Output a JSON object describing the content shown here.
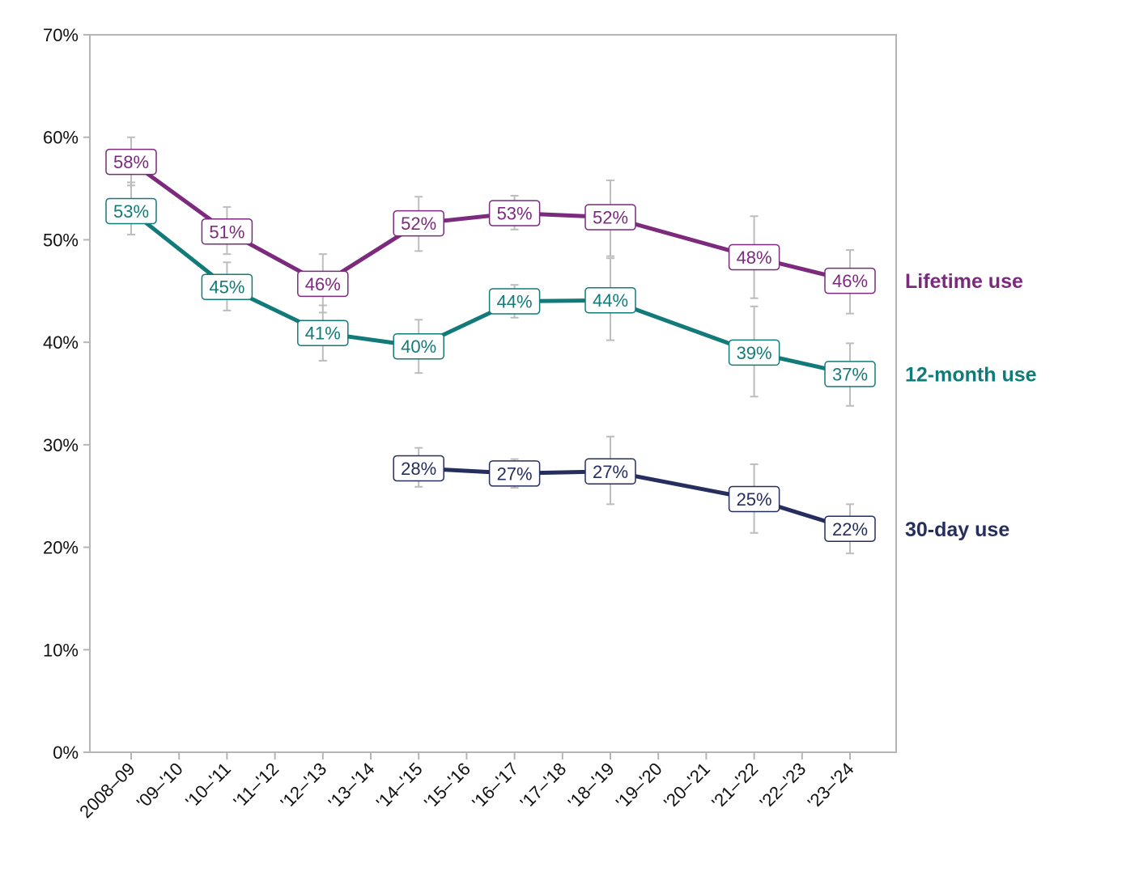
{
  "chart_data": {
    "type": "line",
    "title": "",
    "xlabel": "",
    "ylabel": "",
    "ylim": [
      0,
      70
    ],
    "y_ticks": [
      "0%",
      "10%",
      "20%",
      "30%",
      "40%",
      "50%",
      "60%",
      "70%"
    ],
    "categories": [
      "2008–09",
      "'09–'10",
      "'10–'11",
      "'11–'12",
      "'12–'13",
      "'13–'14",
      "'14–'15",
      "'15–'16",
      "'16–'17",
      "'17–'18",
      "'18–'19",
      "'19–'20",
      "'20–'21",
      "'21–'22",
      "'22–'23",
      "'23–'24"
    ],
    "grid": false,
    "legend": "labels at right end of lines",
    "series": [
      {
        "name": "Lifetime use",
        "color": "#7b2a7e",
        "points": [
          {
            "x": "2008–09",
            "y": 57.6,
            "label": "58%",
            "err": [
              55.3,
              60.0
            ]
          },
          {
            "x": "'10–'11",
            "y": 50.8,
            "label": "51%",
            "err": [
              48.6,
              53.2
            ]
          },
          {
            "x": "'12–'13",
            "y": 45.7,
            "label": "46%",
            "err": [
              42.9,
              48.6
            ]
          },
          {
            "x": "'14–'15",
            "y": 51.6,
            "label": "52%",
            "err": [
              48.9,
              54.2
            ]
          },
          {
            "x": "'16–'17",
            "y": 52.6,
            "label": "53%",
            "err": [
              51.0,
              54.3
            ]
          },
          {
            "x": "'18–'19",
            "y": 52.2,
            "label": "52%",
            "err": [
              48.4,
              55.8
            ]
          },
          {
            "x": "'21–'22",
            "y": 48.3,
            "label": "48%",
            "err": [
              44.3,
              52.3
            ]
          },
          {
            "x": "'23–'24",
            "y": 46.0,
            "label": "46%",
            "err": [
              42.8,
              49.0
            ]
          }
        ]
      },
      {
        "name": "12-month use",
        "color": "#127b7a",
        "points": [
          {
            "x": "2008–09",
            "y": 52.8,
            "label": "53%",
            "err": [
              50.5,
              55.6
            ]
          },
          {
            "x": "'10–'11",
            "y": 45.4,
            "label": "45%",
            "err": [
              43.1,
              47.8
            ]
          },
          {
            "x": "'12–'13",
            "y": 40.9,
            "label": "41%",
            "err": [
              38.2,
              43.6
            ]
          },
          {
            "x": "'14–'15",
            "y": 39.6,
            "label": "40%",
            "err": [
              37.0,
              42.2
            ]
          },
          {
            "x": "'16–'17",
            "y": 44.0,
            "label": "44%",
            "err": [
              42.4,
              45.6
            ]
          },
          {
            "x": "'18–'19",
            "y": 44.1,
            "label": "44%",
            "err": [
              40.2,
              48.2
            ]
          },
          {
            "x": "'21–'22",
            "y": 39.0,
            "label": "39%",
            "err": [
              34.7,
              43.5
            ]
          },
          {
            "x": "'23–'24",
            "y": 36.9,
            "label": "37%",
            "err": [
              33.8,
              39.9
            ]
          }
        ]
      },
      {
        "name": "30-day use",
        "color": "#252e5e",
        "points": [
          {
            "x": "'14–'15",
            "y": 27.7,
            "label": "28%",
            "err": [
              25.9,
              29.7
            ]
          },
          {
            "x": "'16–'17",
            "y": 27.2,
            "label": "27%",
            "err": [
              25.8,
              28.6
            ]
          },
          {
            "x": "'18–'19",
            "y": 27.4,
            "label": "27%",
            "err": [
              24.2,
              30.8
            ]
          },
          {
            "x": "'21–'22",
            "y": 24.7,
            "label": "25%",
            "err": [
              21.4,
              28.1
            ]
          },
          {
            "x": "'23–'24",
            "y": 21.8,
            "label": "22%",
            "err": [
              19.4,
              24.2
            ]
          }
        ]
      }
    ],
    "error_bar_color": "#bdbdbd",
    "axis_color": "#b5b5b5"
  }
}
